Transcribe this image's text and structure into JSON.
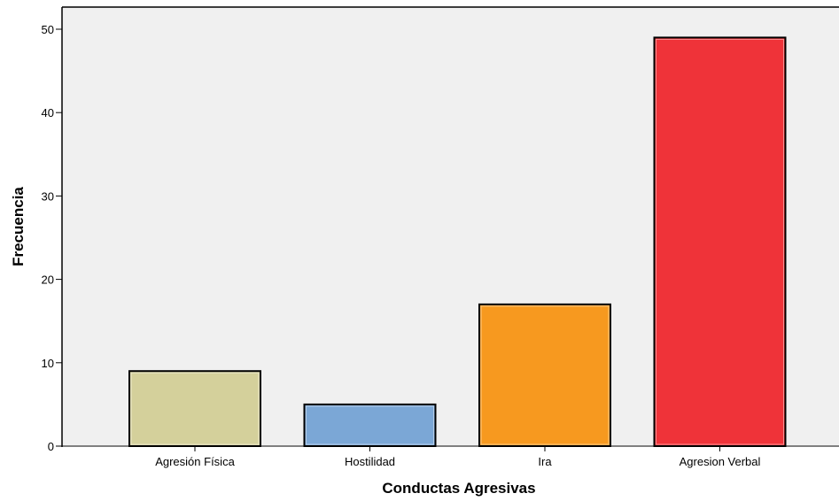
{
  "chart_data": {
    "type": "bar",
    "title": "",
    "xlabel": "Conductas Agresivas",
    "ylabel": "Frecuencia",
    "categories": [
      "Agresión Física",
      "Hostilidad",
      "Ira",
      "Agresion Verbal"
    ],
    "values": [
      9,
      5,
      17,
      49
    ],
    "colors": [
      "#D4D09B",
      "#7BA7D6",
      "#F7991F",
      "#EF3339"
    ],
    "ylim": [
      0,
      52
    ],
    "yticks": [
      0,
      10,
      20,
      30,
      40,
      50
    ],
    "grid": false,
    "legend": "none",
    "plot_background": "#F0F0F0"
  }
}
